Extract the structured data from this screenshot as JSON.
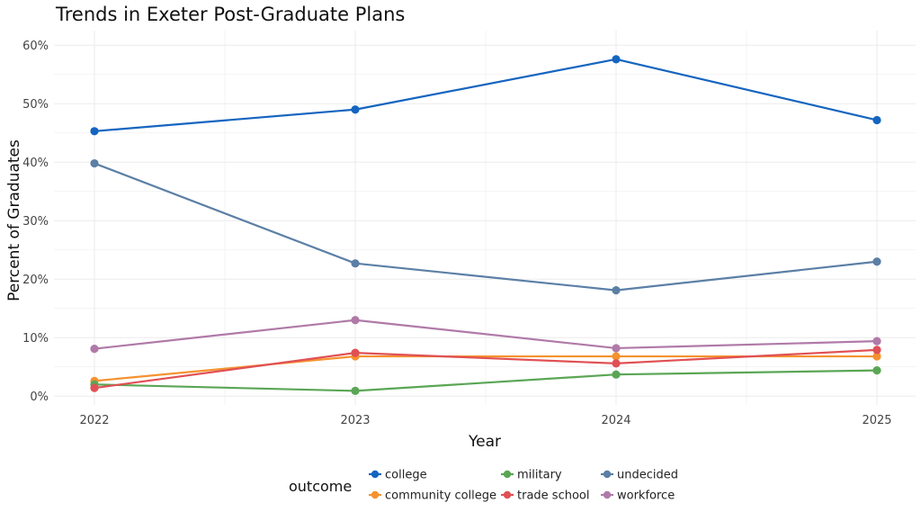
{
  "chart_data": {
    "type": "line",
    "title": "Trends in Exeter Post-Graduate Plans",
    "xlabel": "Year",
    "ylabel": "Percent of Graduates",
    "x": [
      "2022",
      "2023",
      "2024",
      "2025"
    ],
    "y_ticks": [
      "0%",
      "10%",
      "20%",
      "30%",
      "40%",
      "50%",
      "60%"
    ],
    "ylim": [
      -1.5,
      62.5
    ],
    "grid": true,
    "legend_title": "outcome",
    "legend_position": "bottom",
    "series": [
      {
        "name": "college",
        "color": "#1565c0",
        "values": [
          45.3,
          49.0,
          57.6,
          47.2
        ]
      },
      {
        "name": "community college",
        "color": "#f5922f",
        "values": [
          2.6,
          6.8,
          6.8,
          6.8
        ]
      },
      {
        "name": "military",
        "color": "#5aa655",
        "values": [
          2.0,
          0.9,
          3.7,
          4.4
        ]
      },
      {
        "name": "trade school",
        "color": "#e05054",
        "values": [
          1.4,
          7.4,
          5.6,
          7.9
        ]
      },
      {
        "name": "undecided",
        "color": "#5b7fa6",
        "values": [
          39.8,
          22.7,
          18.1,
          23.0
        ]
      },
      {
        "name": "workforce",
        "color": "#b07aa8",
        "values": [
          8.1,
          13.0,
          8.2,
          9.4
        ]
      }
    ]
  }
}
